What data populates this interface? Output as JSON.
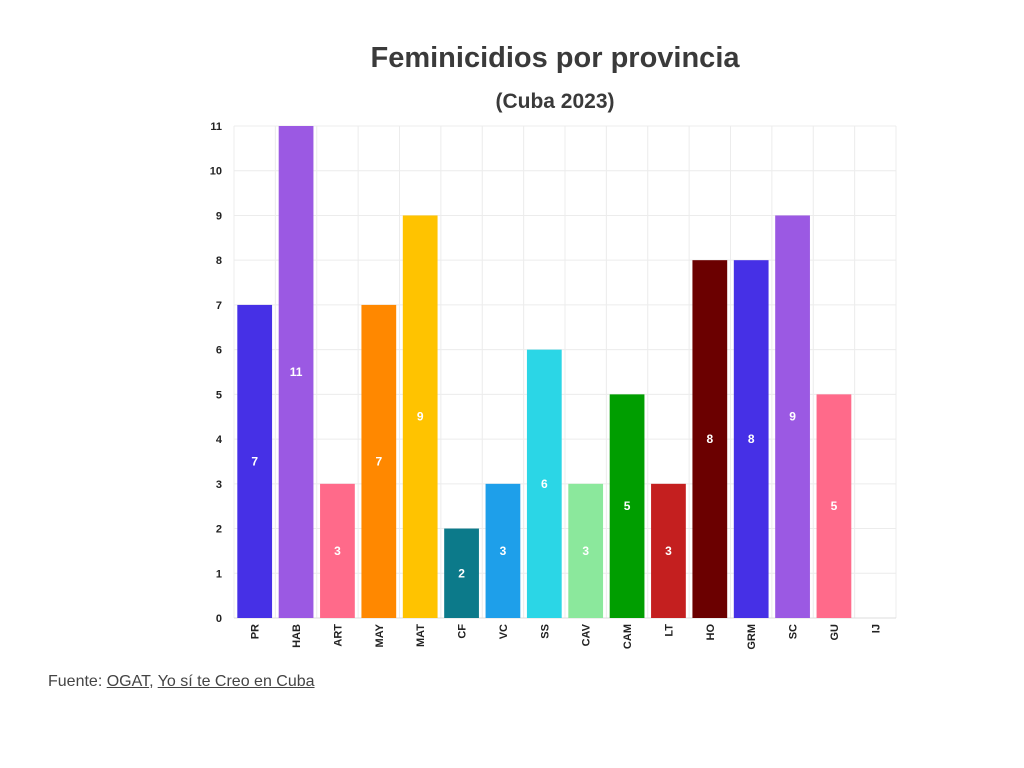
{
  "title": "Feminicidios por provincia",
  "subtitle": "(Cuba 2023)",
  "source": {
    "prefix": "Fuente: ",
    "link1": "OGAT",
    "separator": ", ",
    "link2": "Yo sí te Creo en Cuba"
  },
  "chart_data": {
    "type": "bar",
    "title": "Feminicidios por provincia",
    "subtitle": "(Cuba 2023)",
    "xlabel": "",
    "ylabel": "",
    "ylim": [
      0,
      11
    ],
    "yticks": [
      "0",
      "1",
      "2",
      "3",
      "4",
      "5",
      "6",
      "7",
      "8",
      "9",
      "10",
      "11"
    ],
    "grid": true,
    "legend": "none",
    "categories": [
      "PR",
      "HAB",
      "ART",
      "MAY",
      "MAT",
      "CF",
      "VC",
      "SS",
      "CAV",
      "CAM",
      "LT",
      "HO",
      "GRM",
      "SC",
      "GU",
      "IJ"
    ],
    "values": [
      7,
      11,
      3,
      7,
      9,
      2,
      3,
      6,
      3,
      5,
      3,
      8,
      8,
      9,
      5,
      0
    ],
    "data_labels": [
      "7",
      "11",
      "3",
      "7",
      "9",
      "2",
      "3",
      "6",
      "3",
      "5",
      "3",
      "8",
      "8",
      "9",
      "5",
      ""
    ],
    "colors": [
      "#4630e6",
      "#9b59e3",
      "#ff6a8a",
      "#ff8800",
      "#ffc300",
      "#0c7a8a",
      "#1e9fea",
      "#2bd6e6",
      "#8be89c",
      "#009e00",
      "#c41f1f",
      "#6b0000",
      "#4630e6",
      "#9b59e3",
      "#ff6a8a",
      "#ffffff"
    ]
  }
}
